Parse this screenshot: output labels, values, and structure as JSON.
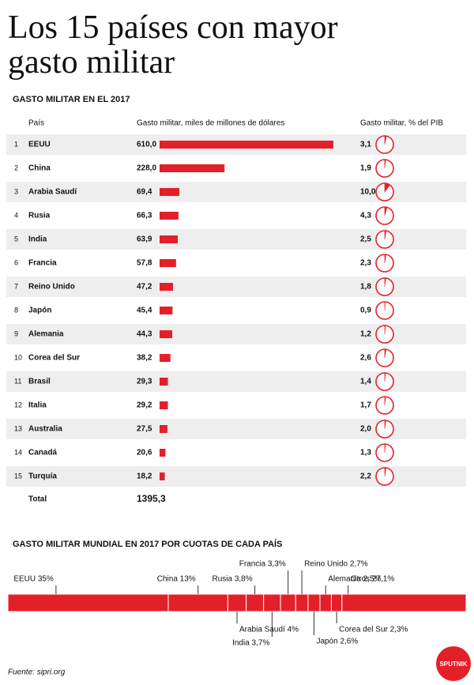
{
  "title": "Los 15 países con mayor gasto militar",
  "table": {
    "heading": "GASTO MILITAR EN EL 2017",
    "headers": [
      "País",
      "Gasto militar, miles de millones de dólares",
      "Gasto militar, % del PIB"
    ],
    "color": "#e3202a",
    "rows": [
      {
        "rank": 1,
        "country": "EEUU",
        "spend": 610.0,
        "spend_label": "610,0",
        "gdp": 3.1,
        "gdp_label": "3,1"
      },
      {
        "rank": 2,
        "country": "China",
        "spend": 228.0,
        "spend_label": "228,0",
        "gdp": 1.9,
        "gdp_label": "1,9"
      },
      {
        "rank": 3,
        "country": "Arabia Saudí",
        "spend": 69.4,
        "spend_label": "69,4",
        "gdp": 10.0,
        "gdp_label": "10,0"
      },
      {
        "rank": 4,
        "country": "Rusia",
        "spend": 66.3,
        "spend_label": "66,3",
        "gdp": 4.3,
        "gdp_label": "4,3"
      },
      {
        "rank": 5,
        "country": "India",
        "spend": 63.9,
        "spend_label": "63,9",
        "gdp": 2.5,
        "gdp_label": "2,5"
      },
      {
        "rank": 6,
        "country": "Francia",
        "spend": 57.8,
        "spend_label": "57,8",
        "gdp": 2.3,
        "gdp_label": "2,3"
      },
      {
        "rank": 7,
        "country": "Reino Unido",
        "spend": 47.2,
        "spend_label": "47,2",
        "gdp": 1.8,
        "gdp_label": "1,8"
      },
      {
        "rank": 8,
        "country": "Japón",
        "spend": 45.4,
        "spend_label": "45,4",
        "gdp": 0.9,
        "gdp_label": "0,9"
      },
      {
        "rank": 9,
        "country": "Alemania",
        "spend": 44.3,
        "spend_label": "44,3",
        "gdp": 1.2,
        "gdp_label": "1,2"
      },
      {
        "rank": 10,
        "country": "Corea del Sur",
        "spend": 38.2,
        "spend_label": "38,2",
        "gdp": 2.6,
        "gdp_label": "2,6"
      },
      {
        "rank": 11,
        "country": "Brasil",
        "spend": 29.3,
        "spend_label": "29,3",
        "gdp": 1.4,
        "gdp_label": "1,4"
      },
      {
        "rank": 12,
        "country": "Italia",
        "spend": 29.2,
        "spend_label": "29,2",
        "gdp": 1.7,
        "gdp_label": "1,7"
      },
      {
        "rank": 13,
        "country": "Australia",
        "spend": 27.5,
        "spend_label": "27,5",
        "gdp": 2.0,
        "gdp_label": "2,0"
      },
      {
        "rank": 14,
        "country": "Canadá",
        "spend": 20.6,
        "spend_label": "20,6",
        "gdp": 1.3,
        "gdp_label": "1,3"
      },
      {
        "rank": 15,
        "country": "Turquía",
        "spend": 18.2,
        "spend_label": "18,2",
        "gdp": 2.2,
        "gdp_label": "2,2"
      }
    ],
    "total_label": "Total",
    "total": 1395.3,
    "total_value_label": "1395,3"
  },
  "shares": {
    "heading": "GASTO MILITAR MUNDIAL EN 2017 POR CUOTAS DE CADA PAÍS",
    "color": "#e3202a",
    "segments": [
      {
        "label": "EEUU 35%",
        "value": 35
      },
      {
        "label": "China 13%",
        "value": 13
      },
      {
        "label": "Arabia Saudí 4%",
        "value": 4
      },
      {
        "label": "Rusia 3,8%",
        "value": 3.8
      },
      {
        "label": "India 3,7%",
        "value": 3.7
      },
      {
        "label": "Francia 3,3%",
        "value": 3.3
      },
      {
        "label": "Reino Unido 2,7%",
        "value": 2.7
      },
      {
        "label": "Japón 2,6%",
        "value": 2.6
      },
      {
        "label": "Alemania 2,5%",
        "value": 2.5
      },
      {
        "label": "Corea del Sur 2,3%",
        "value": 2.3
      },
      {
        "label": "Otros 27,1%",
        "value": 27.1
      }
    ]
  },
  "source": "Fuente: sipri.org",
  "logo": "SPUTNIK"
}
